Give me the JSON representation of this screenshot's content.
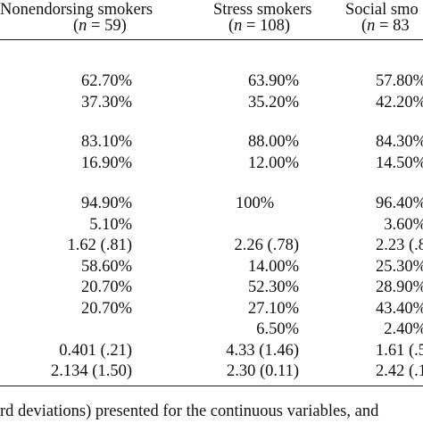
{
  "table": {
    "columns": [
      {
        "name": "Nonendorsing smokers",
        "n_prefix": "(",
        "n_var": "n",
        "n_rest": " = 59)"
      },
      {
        "name": "Stress smokers",
        "n_prefix": "(",
        "n_var": "n",
        "n_rest": " = 108)"
      },
      {
        "name": "Social smo",
        "n_prefix": "(",
        "n_var": "n",
        "n_rest": " = 83"
      }
    ],
    "rows": [
      [
        "62.70%",
        "63.90%",
        "57.80%"
      ],
      [
        "37.30%",
        "35.20%",
        "42.20%"
      ],
      [
        "83.10%",
        "88.00%",
        "84.30%"
      ],
      [
        "16.90%",
        "12.00%",
        "14.50%"
      ],
      [
        "94.90%",
        "100%",
        "96.40%"
      ],
      [
        "5.10%",
        "",
        "3.60%"
      ],
      [
        "1.62 (.81)",
        "2.26 (.78)",
        "2.23 (.8"
      ],
      [
        "58.60%",
        "14.00%",
        "25.30%"
      ],
      [
        "20.70%",
        "52.30%",
        "28.90%"
      ],
      [
        "20.70%",
        "27.10%",
        "43.40%"
      ],
      [
        "",
        "6.50%",
        "2.40%"
      ],
      [
        "0.401 (.21)",
        "4.33 (1.46)",
        "1.61 (.5"
      ],
      [
        "2.134 (1.50)",
        "2.30 (0.11)",
        "2.42 (.1"
      ]
    ]
  },
  "footnote": "rd deviations) presented for the continuous variables, and"
}
